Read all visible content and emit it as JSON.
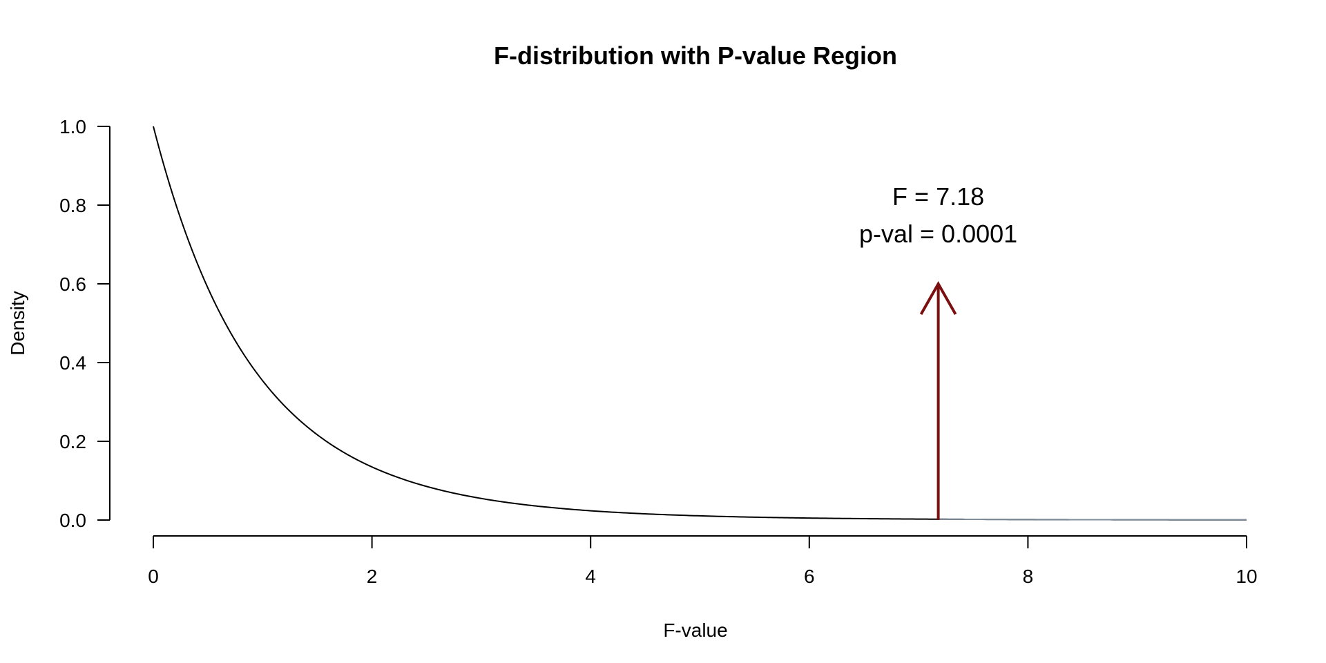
{
  "chart_data": {
    "type": "line",
    "title": "F-distribution with P-value Region",
    "xlabel": "F-value",
    "ylabel": "Density",
    "xlim": [
      0,
      10
    ],
    "ylim": [
      0,
      1
    ],
    "x_ticks": [
      0,
      2,
      4,
      6,
      8,
      10
    ],
    "x_tick_labels": [
      "0",
      "2",
      "4",
      "6",
      "8",
      "10"
    ],
    "y_ticks": [
      0,
      0.2,
      0.4,
      0.6,
      0.8,
      1
    ],
    "y_tick_labels": [
      "0.0",
      "0.2",
      "0.4",
      "0.6",
      "0.8",
      "1.0"
    ],
    "grid": false,
    "distribution": {
      "name": "F",
      "df1": 2,
      "df2": 25
    },
    "series": [
      {
        "x": [
          0,
          0.25,
          0.5,
          0.75,
          1,
          1.25,
          1.5,
          2,
          2.5,
          3,
          3.5,
          4,
          5,
          6,
          7,
          7.18,
          8,
          9,
          10
        ],
        "values": [
          1.0,
          0.78,
          0.61,
          0.48,
          0.38,
          0.3,
          0.24,
          0.15,
          0.1,
          0.065,
          0.044,
          0.029,
          0.014,
          0.0067,
          0.0034,
          0.003,
          0.0017,
          0.0009,
          0.0005
        ],
        "color": "#000000"
      }
    ],
    "p_value_region": {
      "from": 7.18,
      "to": 10,
      "color": "#7f8c9a"
    },
    "arrow": {
      "x": 7.18,
      "y_start": 0,
      "y_end": 0.6,
      "color": "#7b0f0f"
    },
    "annotations": [
      {
        "text": "F = 7.18",
        "x": 7.18,
        "y": 0.8
      },
      {
        "text": "p-val = 0.0001",
        "x": 7.18,
        "y": 0.705
      }
    ]
  }
}
